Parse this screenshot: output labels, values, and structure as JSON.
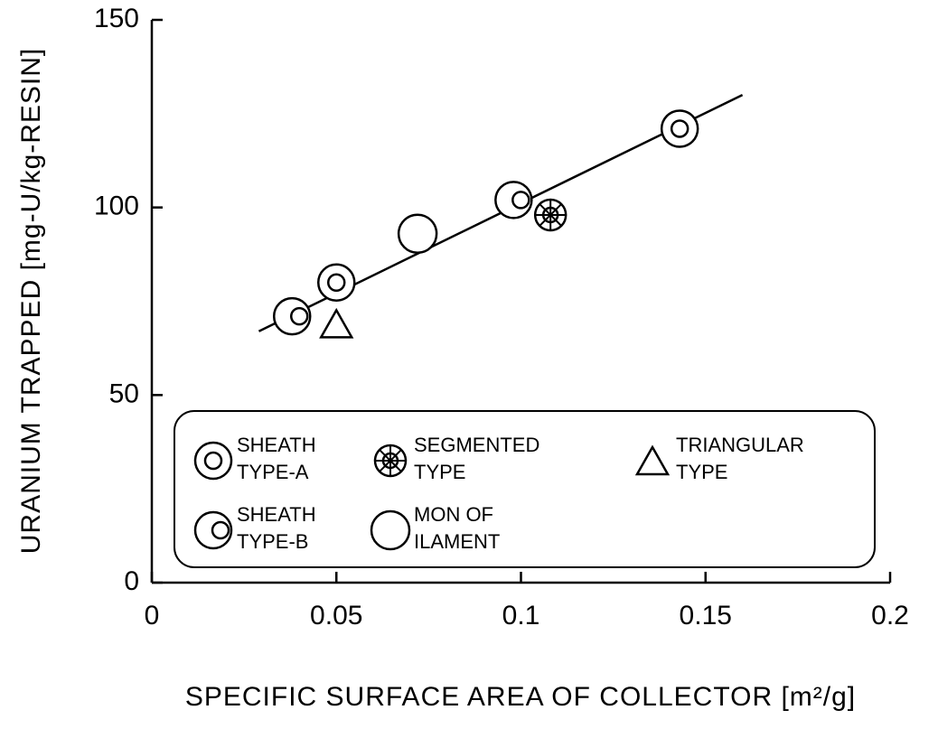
{
  "chart_data": {
    "type": "scatter",
    "x_label": "SPECIFIC SURFACE AREA OF COLLECTOR [m²/g]",
    "y_label": "URANIUM TRAPPED [mg-U/kg-RESIN]",
    "xlim": [
      0,
      0.2
    ],
    "xticks": [
      0,
      0.05,
      0.1,
      0.15,
      0.2
    ],
    "ylim": [
      0,
      150
    ],
    "yticks": [
      0,
      50,
      100,
      150
    ],
    "grid": false,
    "legend": "bottom",
    "series": [
      {
        "name": [
          "SHEATH",
          "TYPE-A"
        ],
        "marker": "double-circle",
        "color": "#000000",
        "x": [
          0.05,
          0.143
        ],
        "values": [
          80,
          121
        ]
      },
      {
        "name": [
          "SEGMENTED",
          "TYPE"
        ],
        "marker": "segmented",
        "color": "#000000",
        "x": [
          0.108
        ],
        "values": [
          98
        ]
      },
      {
        "name": [
          "TRIANGULAR",
          "TYPE"
        ],
        "marker": "triangle",
        "color": "#000000",
        "x": [
          0.05
        ],
        "values": [
          69
        ]
      },
      {
        "name": [
          "SHEATH",
          "TYPE-B"
        ],
        "marker": "offset-circle",
        "color": "#000000",
        "x": [
          0.038,
          0.098
        ],
        "values": [
          71,
          102
        ]
      },
      {
        "name": [
          "MON OF",
          "ILAMENT"
        ],
        "marker": "circle",
        "color": "#000000",
        "x": [
          0.072
        ],
        "values": [
          93
        ]
      }
    ],
    "trend_line": {
      "x": [
        0.029,
        0.16
      ],
      "values": [
        67,
        130
      ]
    }
  }
}
